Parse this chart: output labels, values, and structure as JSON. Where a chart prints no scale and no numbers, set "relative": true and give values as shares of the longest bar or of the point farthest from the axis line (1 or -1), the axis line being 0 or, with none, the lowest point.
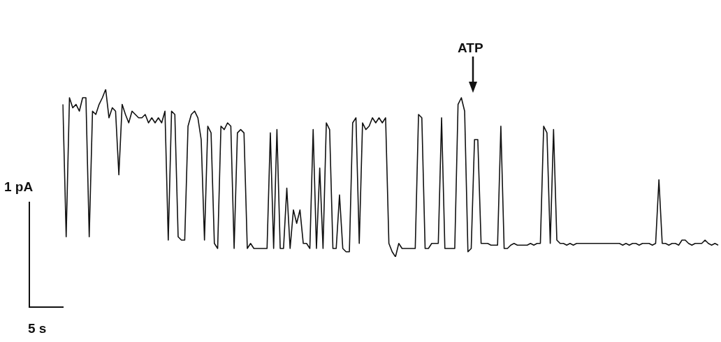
{
  "chart_data": {
    "type": "line",
    "relative": true,
    "color": "#111111",
    "marker": "none",
    "legend": false,
    "tick_labels": false,
    "annotations": [
      "ATP",
      "1 pA",
      "5 s"
    ],
    "categories": [
      null,
      null,
      null,
      null,
      null,
      null,
      null,
      null,
      null,
      null,
      null,
      null,
      null,
      null,
      null,
      null,
      null,
      null,
      null,
      null,
      null,
      null,
      null,
      null,
      null,
      null,
      null,
      null,
      null,
      null,
      null,
      null,
      null,
      null,
      null,
      null,
      null,
      null,
      null,
      null,
      null,
      null,
      null,
      null,
      null,
      null,
      null,
      null,
      null,
      null,
      null,
      null,
      null,
      null,
      null,
      null,
      null,
      null,
      null,
      null,
      null,
      null,
      null,
      null,
      null,
      null,
      null,
      null,
      null,
      null,
      null,
      null,
      null,
      null,
      null,
      null,
      null,
      null,
      null,
      null,
      null,
      null,
      null,
      null,
      null,
      null,
      null,
      null,
      null,
      null,
      null,
      null,
      null,
      null,
      null,
      null,
      null,
      null,
      null,
      null,
      null,
      null,
      null,
      null,
      null,
      null,
      null,
      null,
      null,
      null,
      null,
      null,
      null,
      null,
      null,
      null,
      null,
      null,
      null,
      null,
      null,
      null,
      null,
      null,
      null,
      null,
      null,
      null,
      null,
      null,
      null,
      null,
      null,
      null,
      null,
      null,
      null,
      null,
      null,
      null,
      null,
      null,
      null,
      null,
      null,
      null,
      null,
      null,
      null,
      null,
      null,
      null,
      null,
      null,
      null,
      null,
      null,
      null,
      null,
      null,
      null,
      null,
      null,
      null,
      null,
      null,
      null,
      null,
      null,
      null,
      null,
      null,
      null,
      null,
      null,
      null,
      null,
      null,
      null,
      null,
      null,
      null,
      null,
      null,
      null,
      null,
      null,
      null,
      null,
      null,
      null,
      null,
      null,
      null,
      null,
      null,
      null,
      null,
      null,
      null
    ],
    "values": [
      0.91,
      0.12,
      0.95,
      0.89,
      0.91,
      0.87,
      0.95,
      0.95,
      0.12,
      0.87,
      0.85,
      0.91,
      0.95,
      1,
      0.83,
      0.89,
      0.87,
      0.49,
      0.91,
      0.85,
      0.8,
      0.87,
      0.85,
      0.83,
      0.83,
      0.85,
      0.8,
      0.83,
      0.8,
      0.83,
      0.8,
      0.87,
      0.1,
      0.87,
      0.85,
      0.12,
      0.1,
      0.1,
      0.78,
      0.85,
      0.87,
      0.83,
      0.7,
      0.1,
      0.78,
      0.74,
      0.08,
      0.05,
      0.78,
      0.76,
      0.8,
      0.78,
      0.05,
      0.74,
      0.76,
      0.74,
      0.05,
      0.08,
      0.05,
      0.05,
      0.05,
      0.05,
      0.05,
      0.74,
      0.05,
      0.76,
      0.05,
      0.05,
      0.41,
      0.05,
      0.28,
      0.2,
      0.28,
      0.08,
      0.08,
      0.05,
      0.76,
      0.05,
      0.53,
      0.05,
      0.8,
      0.76,
      0.05,
      0.05,
      0.37,
      0.05,
      0.03,
      0.03,
      0.8,
      0.83,
      0.08,
      0.8,
      0.76,
      0.78,
      0.83,
      0.8,
      0.83,
      0.8,
      0.83,
      0.08,
      0.03,
      0,
      0.08,
      0.05,
      0.05,
      0.05,
      0.05,
      0.05,
      0.85,
      0.83,
      0.05,
      0.05,
      0.08,
      0.08,
      0.08,
      0.83,
      0.05,
      0.05,
      0.05,
      0.05,
      0.91,
      0.95,
      0.87,
      0.03,
      0.05,
      0.7,
      0.7,
      0.08,
      0.08,
      0.08,
      0.07,
      0.07,
      0.07,
      0.78,
      0.05,
      0.05,
      0.07,
      0.08,
      0.07,
      0.07,
      0.07,
      0.07,
      0.08,
      0.07,
      0.08,
      0.08,
      0.78,
      0.74,
      0.08,
      0.76,
      0.1,
      0.08,
      0.08,
      0.07,
      0.08,
      0.07,
      0.08,
      0.08,
      0.08,
      0.08,
      0.08,
      0.08,
      0.08,
      0.08,
      0.08,
      0.08,
      0.08,
      0.08,
      0.08,
      0.08,
      0.07,
      0.08,
      0.07,
      0.08,
      0.08,
      0.07,
      0.08,
      0.08,
      0.08,
      0.07,
      0.08,
      0.46,
      0.08,
      0.08,
      0.07,
      0.08,
      0.08,
      0.07,
      0.1,
      0.1,
      0.08,
      0.07,
      0.08,
      0.08,
      0.08,
      0.1,
      0.08,
      0.07,
      0.08,
      0.07
    ]
  }
}
